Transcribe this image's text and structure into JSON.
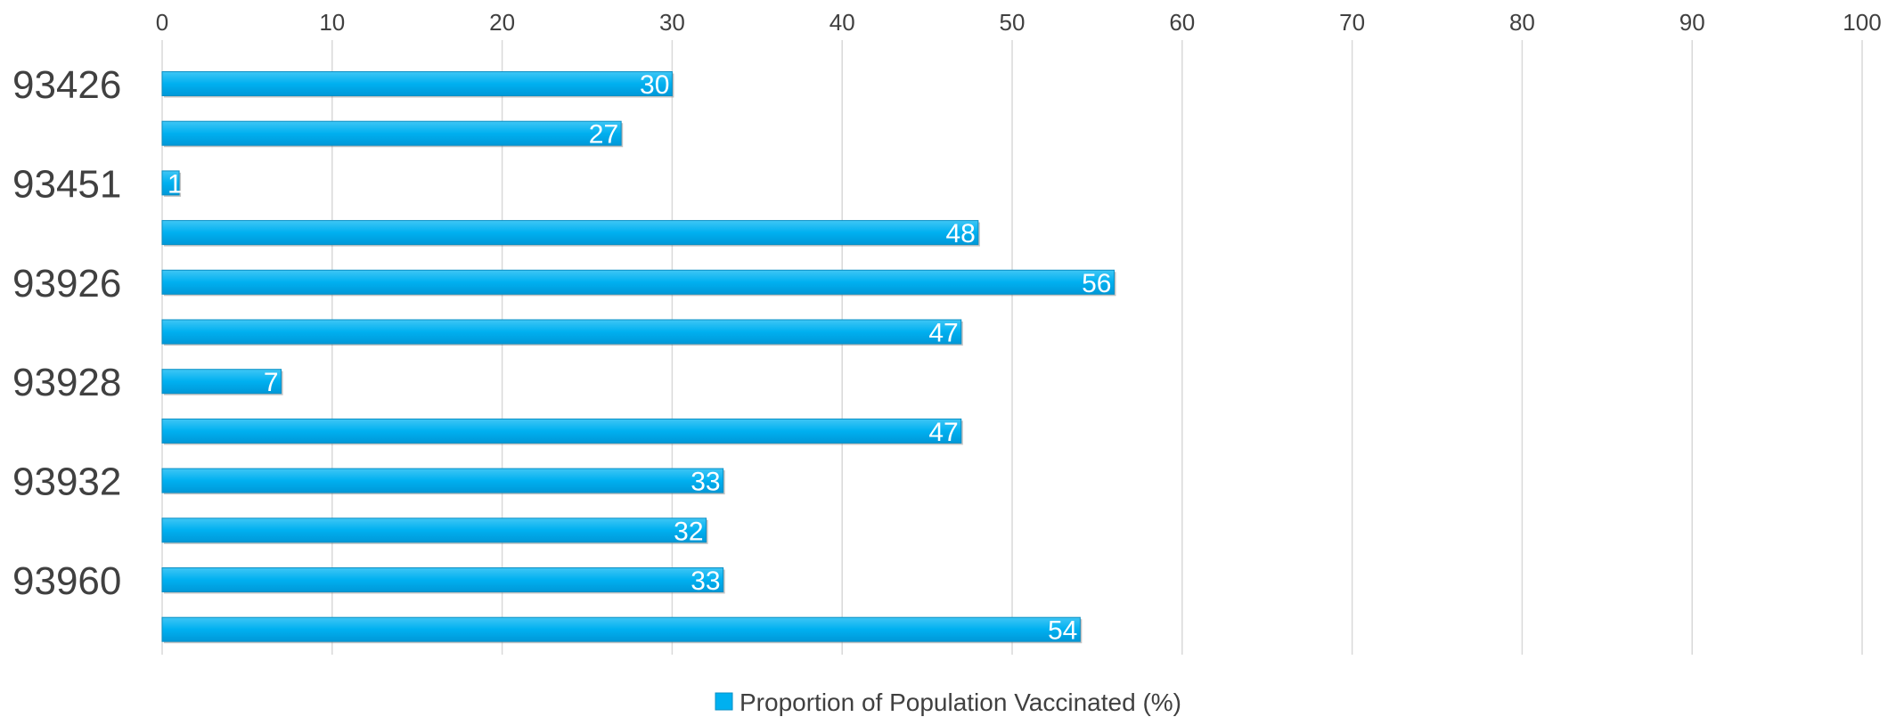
{
  "chart_data": {
    "type": "bar",
    "orientation": "horizontal",
    "categories": [
      "93426",
      "",
      "93451",
      "",
      "93926",
      "",
      "93928",
      "",
      "93932",
      "",
      "93960",
      ""
    ],
    "series": [
      {
        "name": "Proportion of Population Vaccinated (%)",
        "values": [
          30,
          27,
          1,
          48,
          56,
          47,
          7,
          47,
          33,
          32,
          33,
          54
        ],
        "color": "#00b0f0"
      }
    ],
    "xlim": [
      0,
      100
    ],
    "x_ticks": [
      0,
      10,
      20,
      30,
      40,
      50,
      60,
      70,
      80,
      90,
      100
    ],
    "x_axis_position": "top",
    "grid": true,
    "legend": "bottom-center"
  }
}
